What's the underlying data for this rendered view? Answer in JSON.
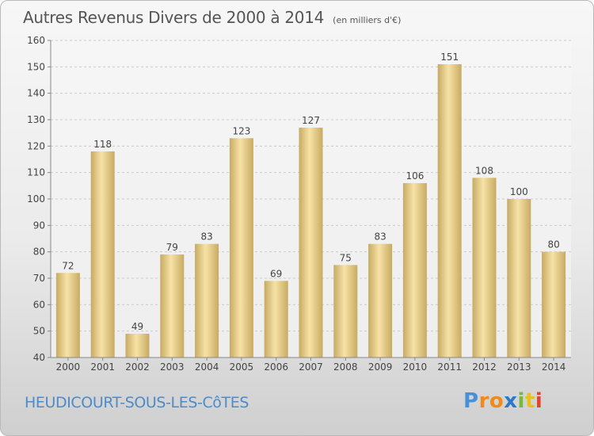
{
  "header": {
    "title": "Autres Revenus Divers de 2000 à 2014",
    "unit": "(en milliers d'€)"
  },
  "footer": {
    "commune": "HEUDICOURT-SOUS-LES-CôTES",
    "logo_letters": [
      "P",
      "r",
      "o",
      "x",
      "i",
      "t",
      "i"
    ],
    "logo_colors": [
      "#4a90d9",
      "#f08a1c",
      "#f08a1c",
      "#2e78c8",
      "#7ab83c",
      "#e8c21c",
      "#e2442c"
    ]
  },
  "colors": {
    "bar_light": "#f7e2a6",
    "bar_dark": "#c7ab63",
    "grid": "#cccccc",
    "axis": "#888888",
    "text": "#444444"
  },
  "chart_data": {
    "type": "bar",
    "title": "Autres Revenus Divers de 2000 à 2014",
    "xlabel": "",
    "ylabel": "",
    "categories": [
      "2000",
      "2001",
      "2002",
      "2003",
      "2004",
      "2005",
      "2006",
      "2007",
      "2008",
      "2009",
      "2010",
      "2011",
      "2012",
      "2013",
      "2014"
    ],
    "values": [
      72,
      118,
      49,
      79,
      83,
      123,
      69,
      127,
      75,
      83,
      106,
      151,
      108,
      100,
      80
    ],
    "ylim": [
      40,
      160
    ],
    "yticks": [
      40,
      50,
      60,
      70,
      80,
      90,
      100,
      110,
      120,
      130,
      140,
      150,
      160
    ],
    "grid": true,
    "data_labels": true
  }
}
